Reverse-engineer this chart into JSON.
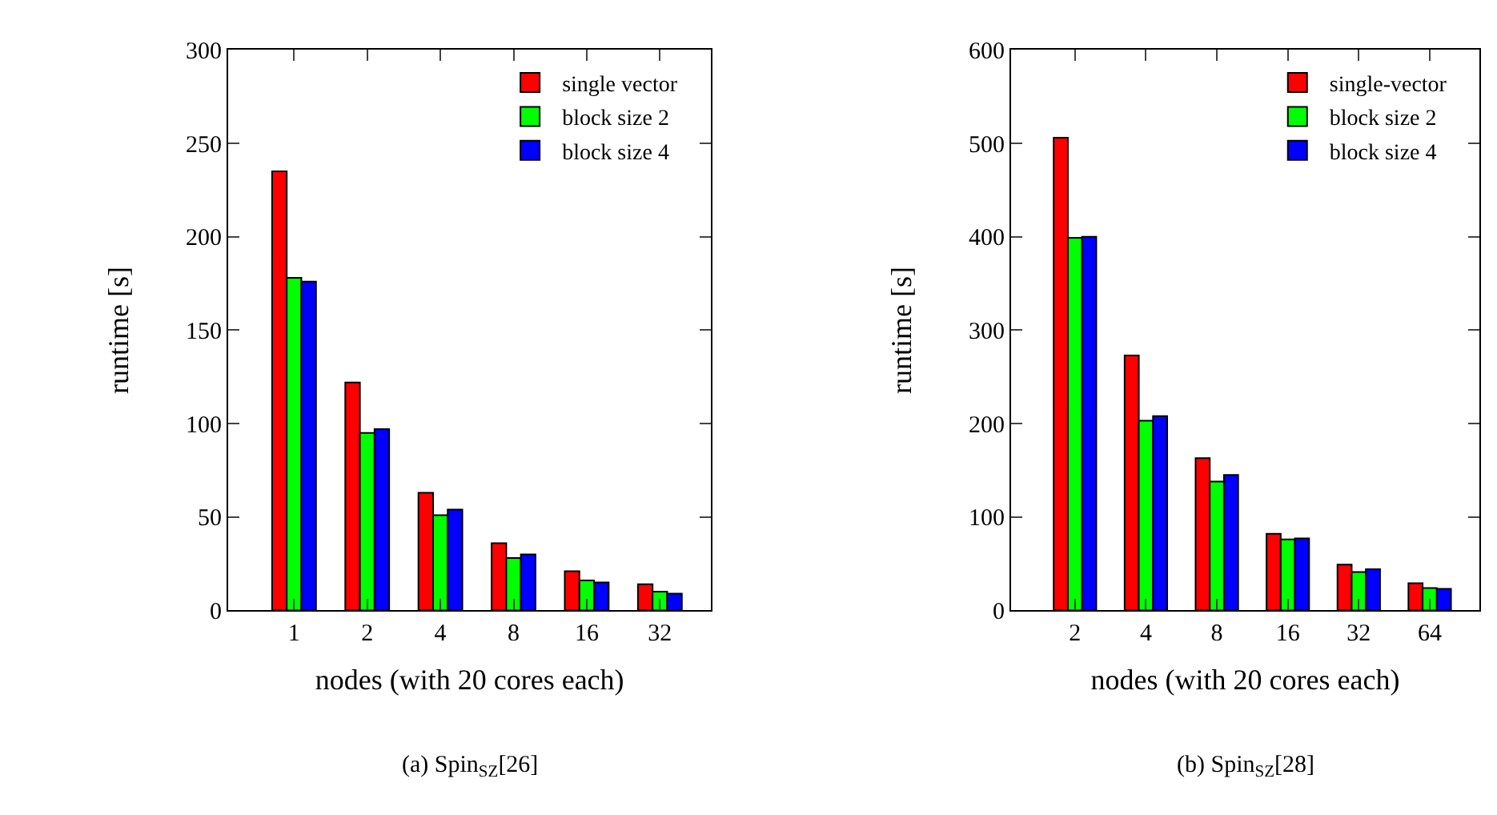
{
  "chart_data": [
    {
      "type": "bar",
      "categories": [
        "1",
        "2",
        "4",
        "8",
        "16",
        "32"
      ],
      "xlabel": "nodes (with 20 cores each)",
      "ylabel": "runtime [s]",
      "ylim": [
        0,
        300
      ],
      "yticks": [
        0,
        50,
        100,
        150,
        200,
        250,
        300
      ],
      "legend": "top right",
      "annotations": [
        "(a) Spin$_{SZ}$[26]"
      ],
      "series": [
        {
          "name": "single vector",
          "color": "#ff0000",
          "values": [
            235,
            122,
            63,
            36,
            21,
            14
          ]
        },
        {
          "name": "block size 2",
          "color": "#00ff00",
          "values": [
            178,
            95,
            51,
            28,
            16,
            10
          ]
        },
        {
          "name": "block size 4",
          "color": "#0000ff",
          "values": [
            176,
            97,
            54,
            30,
            15,
            9
          ]
        }
      ]
    },
    {
      "type": "bar",
      "categories": [
        "2",
        "4",
        "8",
        "16",
        "32",
        "64"
      ],
      "xlabel": "nodes (with 20 cores each)",
      "ylabel": "runtime [s]",
      "ylim": [
        0,
        600
      ],
      "yticks": [
        0,
        100,
        200,
        300,
        400,
        500,
        600
      ],
      "legend": "top right",
      "annotations": [
        "(b) Spin$_{SZ}$[28]"
      ],
      "series": [
        {
          "name": "single-vector",
          "color": "#ff0000",
          "values": [
            506,
            273,
            163,
            82,
            49,
            29
          ]
        },
        {
          "name": "block size 2",
          "color": "#00ff00",
          "values": [
            399,
            203,
            138,
            76,
            41,
            24
          ]
        },
        {
          "name": "block size 4",
          "color": "#0000ff",
          "values": [
            400,
            208,
            145,
            77,
            44,
            23
          ]
        }
      ]
    }
  ]
}
